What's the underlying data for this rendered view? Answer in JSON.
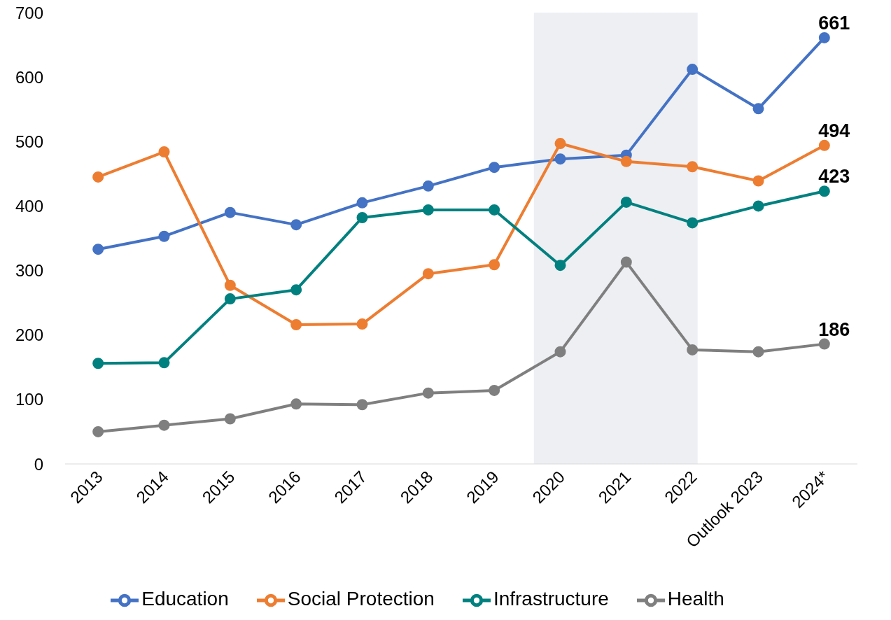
{
  "chart_data": {
    "type": "line",
    "categories": [
      "2013",
      "2014",
      "2015",
      "2016",
      "2017",
      "2018",
      "2019",
      "2020",
      "2021",
      "2022",
      "Outlook 2023",
      "2024*"
    ],
    "series": [
      {
        "name": "Education",
        "color": "#4472c4",
        "values": [
          333,
          353,
          390,
          371,
          405,
          431,
          460,
          473,
          479,
          612,
          551,
          661
        ],
        "value_labels": [
          null,
          null,
          null,
          null,
          null,
          null,
          null,
          null,
          null,
          null,
          null,
          "661"
        ]
      },
      {
        "name": "Social Protection",
        "color": "#ed7d31",
        "values": [
          445,
          484,
          277,
          216,
          217,
          295,
          309,
          497,
          469,
          461,
          439,
          494
        ],
        "value_labels": [
          null,
          null,
          null,
          null,
          null,
          null,
          null,
          null,
          null,
          null,
          null,
          "494"
        ]
      },
      {
        "name": "Infrastructure",
        "color": "#00807f",
        "values": [
          156,
          157,
          256,
          270,
          382,
          394,
          394,
          308,
          406,
          374,
          400,
          423
        ],
        "value_labels": [
          null,
          null,
          null,
          null,
          null,
          null,
          null,
          null,
          null,
          null,
          null,
          "423"
        ]
      },
      {
        "name": "Health",
        "color": "#7f7f7f",
        "values": [
          50,
          60,
          70,
          93,
          92,
          110,
          114,
          174,
          313,
          177,
          174,
          186
        ],
        "value_labels": [
          null,
          null,
          null,
          null,
          null,
          null,
          null,
          null,
          null,
          null,
          null,
          "186"
        ]
      }
    ],
    "ylim": [
      0,
      700
    ],
    "yticks": [
      0,
      100,
      200,
      300,
      400,
      500,
      600,
      700
    ],
    "grid": false,
    "legend": "bottom",
    "marker": "circle",
    "line_style": "solid",
    "bands": [
      {
        "axis": "x",
        "from": "2020",
        "to": "2022",
        "color": "#d6dce5"
      }
    ]
  }
}
